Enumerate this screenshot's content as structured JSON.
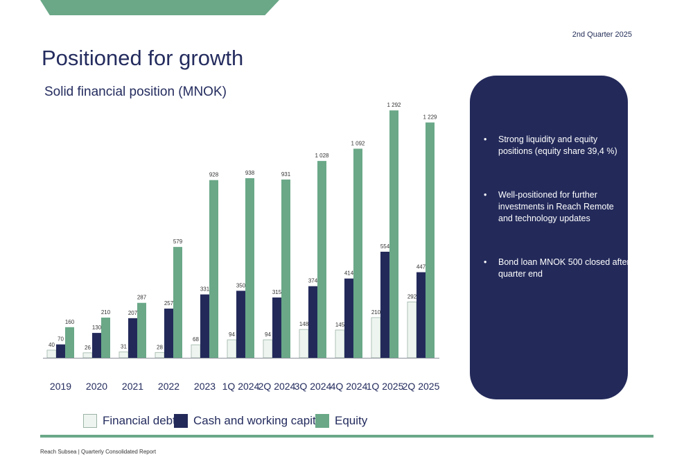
{
  "header": {
    "quarter": "2nd Quarter 2025",
    "title": "Positioned for growth",
    "subtitle": "Solid financial position (MNOK)"
  },
  "chart_data": {
    "type": "bar",
    "categories": [
      "2019",
      "2020",
      "2021",
      "2022",
      "2023",
      "1Q 2024",
      "2Q 2024",
      "3Q 2024",
      "4Q 2024",
      "1Q 2025",
      "2Q 2025"
    ],
    "series": [
      {
        "name": "Financial debt",
        "values": [
          40,
          26,
          31,
          28,
          68,
          94,
          94,
          148,
          145,
          210,
          292
        ],
        "labels": [
          "40",
          "26",
          "31",
          "28",
          "68",
          "94",
          "94",
          "148",
          "145",
          "210",
          "292"
        ],
        "color": "#eef5f0"
      },
      {
        "name": "Cash and working capital",
        "values": [
          70,
          130,
          207,
          257,
          331,
          350,
          315,
          374,
          414,
          554,
          447
        ],
        "labels": [
          "70",
          "130",
          "207",
          "257",
          "331",
          "350",
          "315",
          "374",
          "414",
          "554",
          "447"
        ],
        "color": "#232a5a"
      },
      {
        "name": "Equity",
        "values": [
          160,
          210,
          287,
          579,
          928,
          938,
          931,
          1028,
          1092,
          1292,
          1229
        ],
        "labels": [
          "160",
          "210",
          "287",
          "579",
          "928",
          "938",
          "931",
          "1 028",
          "1 092",
          "1 292",
          "1 229"
        ],
        "color": "#6aa888"
      }
    ],
    "ylim": [
      0,
      1300
    ],
    "grid": false,
    "legend_position": "bottom"
  },
  "bullets": [
    {
      "text": "Strong liquidity and equity positions (equity share 39,4 %)"
    },
    {
      "text": "Well-positioned for further investments in Reach Remote and technology updates"
    },
    {
      "text": "Bond loan MNOK 500 closed after quarter end"
    }
  ],
  "bullet_symbol": "•",
  "footer": "Reach Subsea | Quarterly Consolidated Report"
}
